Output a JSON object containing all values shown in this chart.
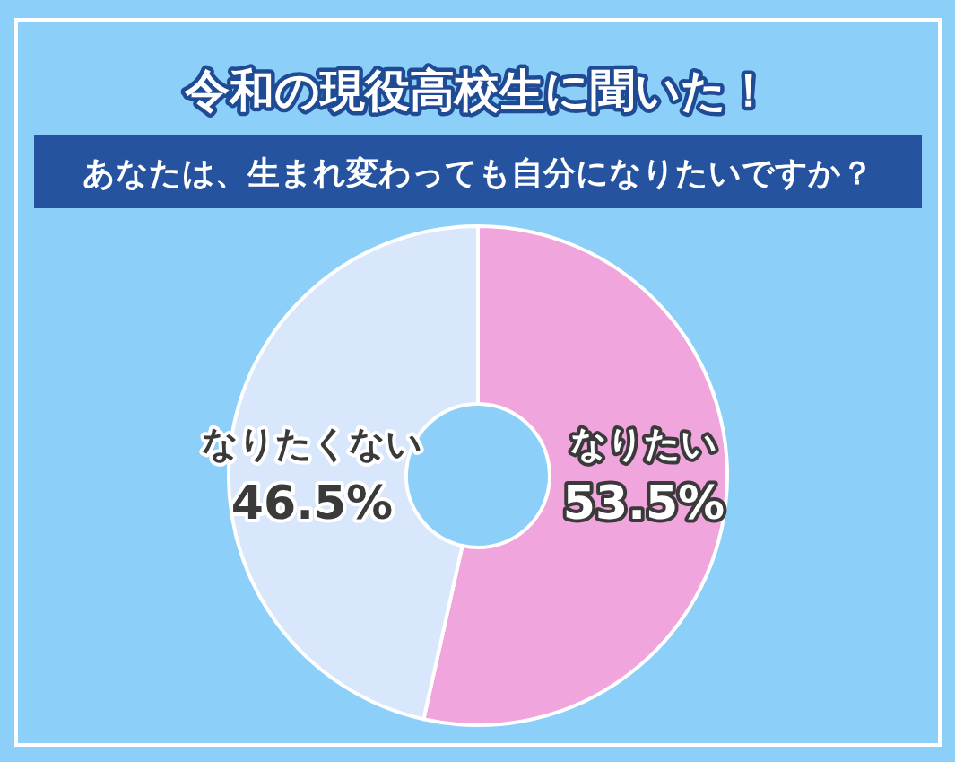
{
  "chart_data": {
    "type": "donut",
    "title": "令和の現役高校生に聞いた！",
    "subtitle": "あなたは、生まれ変わっても自分になりたいですか？",
    "categories": [
      "なりたい",
      "なりたくない"
    ],
    "values": [
      53.5,
      46.5
    ],
    "colors": [
      "#f0a5dd",
      "#d8e7fb"
    ],
    "value_labels": [
      "53.5%",
      "46.5%"
    ]
  }
}
